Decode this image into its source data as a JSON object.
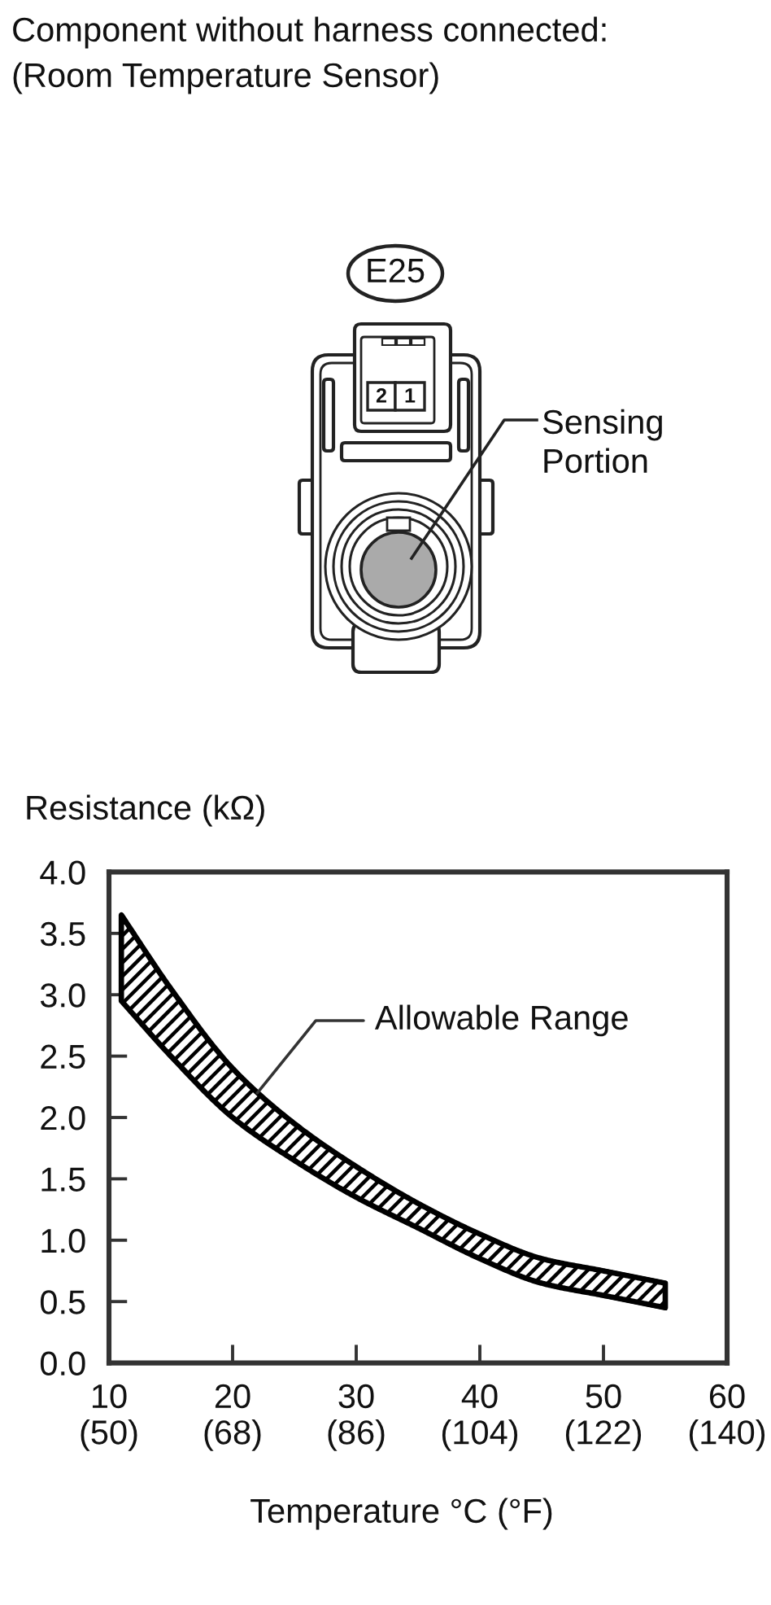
{
  "chart_data": {
    "type": "line",
    "title": "Component without harness connected:",
    "subtitle": "(Room Temperature Sensor)",
    "xlabel": "Temperature °C (°F)",
    "ylabel": "Resistance (kΩ)",
    "xlim": [
      10,
      60
    ],
    "ylim": [
      0,
      4
    ],
    "xticks": [
      10,
      20,
      30,
      40,
      50,
      60
    ],
    "x2lim": [
      50,
      140
    ],
    "x2ticks": [
      {
        "value": 50,
        "label": "(50)"
      },
      {
        "value": 68,
        "label": "(68)"
      },
      {
        "value": 86,
        "label": "(86)"
      },
      {
        "value": 104,
        "label": "(104)"
      },
      {
        "value": 122,
        "label": "(122)"
      },
      {
        "value": 140,
        "label": "(140)"
      }
    ],
    "yticks": [
      {
        "value": 0,
        "label": "0.0"
      },
      {
        "value": 0.5,
        "label": "0.5"
      },
      {
        "value": 1,
        "label": "1.0"
      },
      {
        "value": 1.5,
        "label": "1.5"
      },
      {
        "value": 2,
        "label": "2.0"
      },
      {
        "value": 2.5,
        "label": "2.5"
      },
      {
        "value": 3,
        "label": "3.0"
      },
      {
        "value": 3.5,
        "label": "3.5"
      },
      {
        "value": 4,
        "label": "4.0"
      }
    ],
    "series": [
      {
        "color": "#000000",
        "x": [
          11,
          15,
          20,
          25,
          30,
          35,
          40,
          45,
          50,
          55
        ],
        "values": [
          null,
          null,
          null,
          null,
          null,
          null,
          null,
          null,
          null,
          null
        ],
        "lower": [
          2.95,
          2.5,
          2.0,
          1.65,
          1.35,
          1.1,
          0.85,
          0.65,
          0.55,
          0.45
        ],
        "upper": [
          3.65,
          3.05,
          2.4,
          1.95,
          1.6,
          1.3,
          1.05,
          0.85,
          0.75,
          0.65
        ]
      }
    ],
    "annotations": [
      {
        "text": "Allowable Range",
        "x": 22,
        "y": 2.2
      },
      "E25",
      "2",
      "1",
      "Sensing\nPortion"
    ]
  }
}
